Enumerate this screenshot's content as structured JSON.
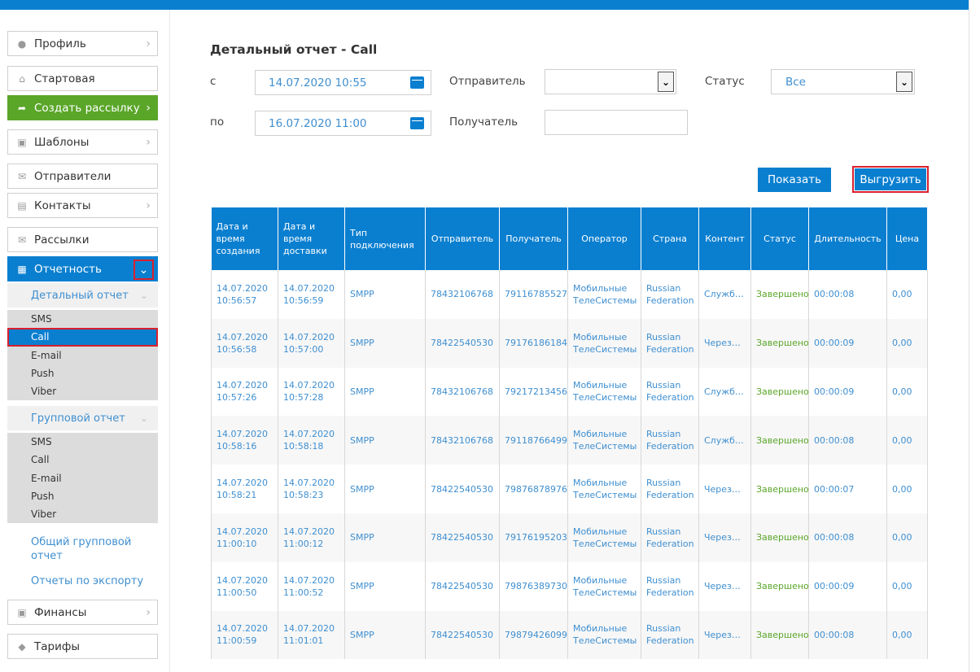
{
  "sidebar": {
    "profile": "Профиль",
    "start": "Стартовая",
    "create": "Создать рассылку",
    "templates": "Шаблоны",
    "senders": "Отправители",
    "contacts": "Контакты",
    "mailings": "Рассылки",
    "reports": "Отчетность",
    "detailed_report": "Детальный отчет",
    "detailed_items": [
      "SMS",
      "Call",
      "E-mail",
      "Push",
      "Viber"
    ],
    "group_report": "Групповой отчет",
    "group_items": [
      "SMS",
      "Call",
      "E-mail",
      "Push",
      "Viber"
    ],
    "general_group_report": "Общий групповой отчет",
    "export_reports": "Отчеты по экспорту",
    "finance": "Финансы",
    "tariffs": "Тарифы"
  },
  "main": {
    "title": "Детальный отчет - Call",
    "from_label": "с",
    "from_value": "14.07.2020 10:55",
    "to_label": "по",
    "to_value": "16.07.2020 11:00",
    "sender_label": "Отправитель",
    "sender_value": "",
    "recipient_label": "Получатель",
    "recipient_value": "",
    "status_label": "Статус",
    "status_value": "Все",
    "show_button": "Показать",
    "export_button": "Выгрузить"
  },
  "table": {
    "headers": [
      "Дата и время создания",
      "Дата и время доставки",
      "Тип подключения",
      "Отправитель",
      "Получатель",
      "Оператор",
      "Страна",
      "Контент",
      "Статус",
      "Длительность",
      "Цена"
    ],
    "rows": [
      [
        "14.07.2020 10:56:57",
        "14.07.2020 10:56:59",
        "SMPP",
        "78432106768",
        "79116785527",
        "Мобильные ТелеСистемы",
        "Russian Federation",
        "Служб…",
        "Завершено",
        "00:00:08",
        "0,00"
      ],
      [
        "14.07.2020 10:56:58",
        "14.07.2020 10:57:00",
        "SMPP",
        "78422540530",
        "79176186184",
        "Мобильные ТелеСистемы",
        "Russian Federation",
        "Через…",
        "Завершено",
        "00:00:09",
        "0,00"
      ],
      [
        "14.07.2020 10:57:26",
        "14.07.2020 10:57:28",
        "SMPP",
        "78432106768",
        "79217213456",
        "Мобильные ТелеСистемы",
        "Russian Federation",
        "Служб…",
        "Завершено",
        "00:00:09",
        "0,00"
      ],
      [
        "14.07.2020 10:58:16",
        "14.07.2020 10:58:18",
        "SMPP",
        "78432106768",
        "79118766499",
        "Мобильные ТелеСистемы",
        "Russian Federation",
        "Служб…",
        "Завершено",
        "00:00:08",
        "0,00"
      ],
      [
        "14.07.2020 10:58:21",
        "14.07.2020 10:58:23",
        "SMPP",
        "78422540530",
        "79876878976",
        "Мобильные ТелеСистемы",
        "Russian Federation",
        "Через…",
        "Завершено",
        "00:00:07",
        "0,00"
      ],
      [
        "14.07.2020 11:00:10",
        "14.07.2020 11:00:12",
        "SMPP",
        "78422540530",
        "79176195203",
        "Мобильные ТелеСистемы",
        "Russian Federation",
        "Через…",
        "Завершено",
        "00:00:08",
        "0,00"
      ],
      [
        "14.07.2020 11:00:50",
        "14.07.2020 11:00:52",
        "SMPP",
        "78422540530",
        "79876389730",
        "Мобильные ТелеСистемы",
        "Russian Federation",
        "Через…",
        "Завершено",
        "00:00:09",
        "0,00"
      ],
      [
        "14.07.2020 11:00:59",
        "14.07.2020 11:01:01",
        "SMPP",
        "78422540530",
        "79879426099",
        "Мобильные ТелеСистемы",
        "Russian Federation",
        "Через…",
        "Завершено",
        "00:00:08",
        "0,00"
      ]
    ]
  }
}
